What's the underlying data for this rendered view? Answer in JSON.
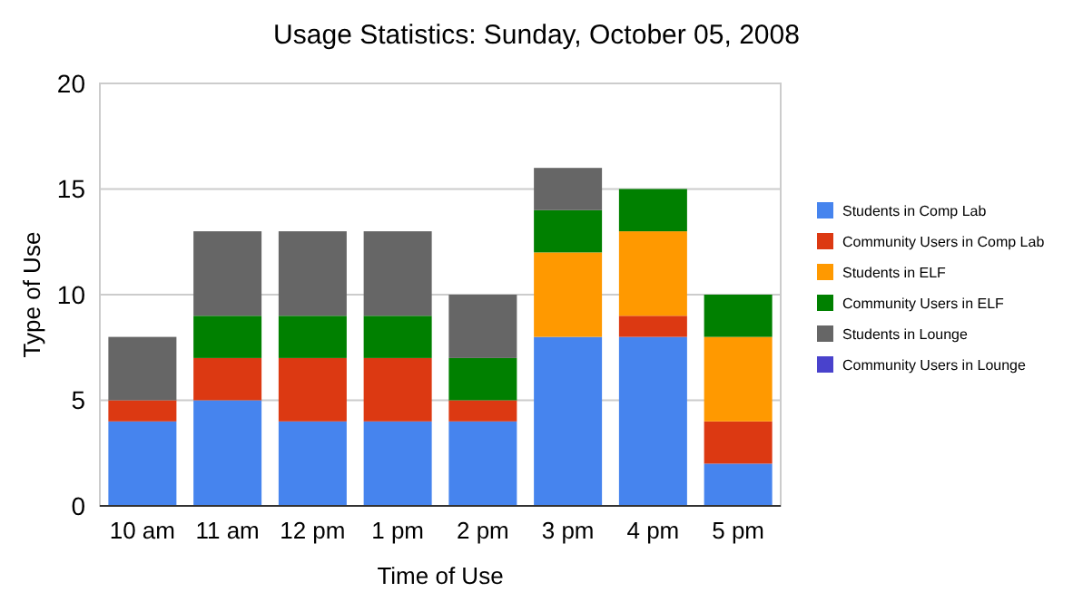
{
  "chart_data": {
    "type": "bar",
    "title": "Usage Statistics: Sunday, October 05, 2008",
    "xlabel": "Time of Use",
    "ylabel": "Type of Use",
    "categories": [
      "10 am",
      "11 am",
      "12 pm",
      "1 pm",
      "2 pm",
      "3 pm",
      "4 pm",
      "5 pm"
    ],
    "stacked": true,
    "ylim": [
      0,
      20
    ],
    "yticks": [
      0,
      5,
      10,
      15,
      20
    ],
    "grid": "y",
    "legend": "right",
    "series": [
      {
        "name": "Students in Comp Lab",
        "color": "#4684ee",
        "values": [
          4,
          5,
          4,
          4,
          4,
          8,
          8,
          2
        ]
      },
      {
        "name": "Community Users in Comp Lab",
        "color": "#dc3912",
        "values": [
          1,
          2,
          3,
          3,
          1,
          0,
          1,
          2
        ]
      },
      {
        "name": "Students in ELF",
        "color": "#ff9900",
        "values": [
          0,
          0,
          0,
          0,
          0,
          4,
          4,
          4
        ]
      },
      {
        "name": "Community Users in ELF",
        "color": "#008000",
        "values": [
          0,
          2,
          2,
          2,
          2,
          2,
          2,
          2
        ]
      },
      {
        "name": "Students in Lounge",
        "color": "#666666",
        "values": [
          3,
          4,
          4,
          4,
          3,
          2,
          0,
          0
        ]
      },
      {
        "name": "Community Users in Lounge",
        "color": "#4942cc",
        "values": [
          0,
          0,
          0,
          0,
          0,
          0,
          0,
          0
        ]
      }
    ]
  }
}
